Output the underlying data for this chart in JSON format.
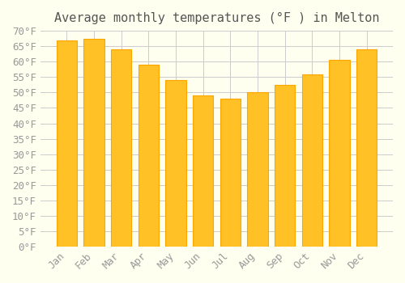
{
  "title": "Average monthly temperatures (°F ) in Melton",
  "months": [
    "Jan",
    "Feb",
    "Mar",
    "Apr",
    "May",
    "Jun",
    "Jul",
    "Aug",
    "Sep",
    "Oct",
    "Nov",
    "Dec"
  ],
  "values": [
    67,
    67.5,
    64,
    59,
    54,
    49,
    48,
    50,
    52.5,
    56,
    60.5,
    64
  ],
  "bar_color": "#FFC125",
  "bar_edge_color": "#FFA500",
  "background_color": "#FFFFF0",
  "grid_color": "#CCCCCC",
  "ylim": [
    0,
    70
  ],
  "yticks": [
    0,
    5,
    10,
    15,
    20,
    25,
    30,
    35,
    40,
    45,
    50,
    55,
    60,
    65,
    70
  ],
  "ylabel_suffix": "°F",
  "title_fontsize": 11,
  "tick_fontsize": 9,
  "font_family": "monospace"
}
